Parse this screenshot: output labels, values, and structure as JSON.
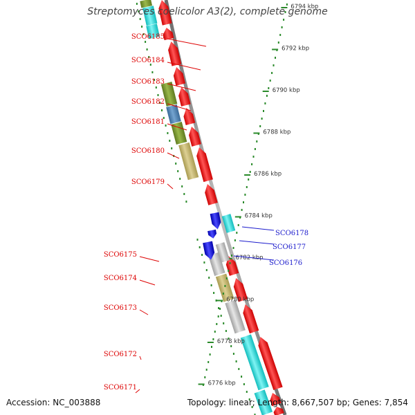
{
  "title": "Streptomyces coelicolor A3(2), complete genome",
  "accession": "Accession: NC_003888",
  "stats": "Topology: linear; Length: 8,667,507 bp; Genes: 7,854",
  "ruler_labels": [
    "6794 kbp",
    "6792 kbp",
    "6790 kbp",
    "6788 kbp",
    "6786 kbp",
    "6784 kbp",
    "6782 kbp",
    "6780 kbp",
    "6778 kbp",
    "6776 kbp"
  ],
  "genes_left": [
    "SCO6185",
    "SCO6184",
    "SCO6183",
    "SCO6182",
    "SCO6181",
    "SCO6180",
    "SCO6179",
    "SCO6175",
    "SCO6174",
    "SCO6173",
    "SCO6172",
    "SCO6171"
  ],
  "genes_right": [
    "SCO6178",
    "SCO6177",
    "SCO6176"
  ],
  "colors": {
    "forward_gene": "#ff1a1a",
    "reverse_gene": "#1a1aee",
    "left_label": "#dd0000",
    "right_label": "#1a1acc",
    "backbone": "#8a8a8a",
    "dots": "#2a8a2a",
    "olive": "#7a9a30",
    "steel": "#5080b0",
    "khaki": "#c8b870",
    "silver": "#c4c4c4",
    "cyan": "#22dddd"
  }
}
